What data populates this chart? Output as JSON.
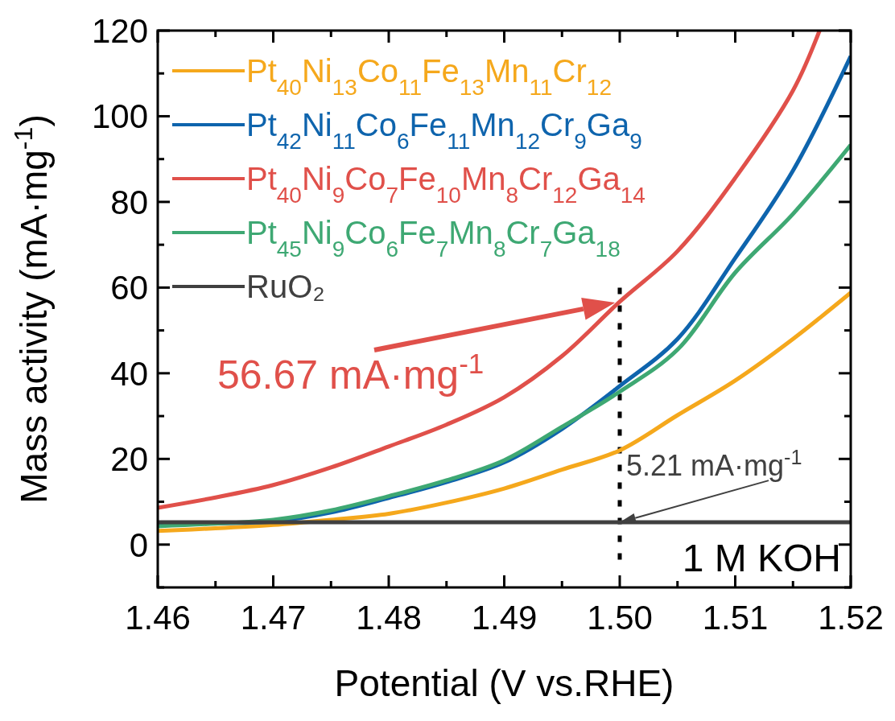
{
  "chart_data": {
    "type": "line",
    "xlabel": "Potential (V vs.RHE)",
    "ylabel": "Mass activity (mA·mg$^{-1}$)",
    "xlim": [
      1.46,
      1.52
    ],
    "xticks": [
      1.46,
      {
        "value": 1.465,
        "label": null
      },
      1.47,
      {
        "value": 1.475,
        "label": null
      },
      1.48,
      {
        "value": 1.485,
        "label": null
      },
      1.49,
      {
        "value": 1.495,
        "label": null
      },
      "1.50",
      {
        "value": 1.505,
        "label": null
      },
      1.51,
      {
        "value": 1.515,
        "label": null
      },
      1.52
    ],
    "ylim": [
      -10,
      120
    ],
    "yticks": [
      {
        "value": -10,
        "label": null
      },
      0,
      {
        "value": 10,
        "label": null
      },
      20,
      {
        "value": 30,
        "label": null
      },
      40,
      {
        "value": 50,
        "label": null
      },
      60,
      {
        "value": 70,
        "label": null
      },
      80,
      {
        "value": 90,
        "label": null
      },
      100,
      {
        "value": 110,
        "label": null
      },
      120
    ],
    "legend": "top left",
    "grid": false,
    "line_style": "solid",
    "series": [
      {
        "name": "Pt$_{40}$Ni$_{13}$Co$_{11}$Fe$_{13}$Mn$_{11}$Cr$_{12}$",
        "color": "#f5a81c",
        "x": [
          1.46,
          1.465,
          1.47,
          1.475,
          1.48,
          1.485,
          1.49,
          1.495,
          1.5,
          1.505,
          1.51,
          1.515,
          1.52
        ],
        "values": [
          3.2,
          3.8,
          4.6,
          5.8,
          7.2,
          9.8,
          13.1,
          17.5,
          22,
          30.2,
          38.3,
          48,
          58.8
        ]
      },
      {
        "name": "Pt$_{42}$Ni$_{11}$Co$_{6}$Fe$_{11}$Mn$_{12}$Cr$_{9}$Ga$_{9}$",
        "color": "#0e64ad",
        "x": [
          1.46,
          1.465,
          1.47,
          1.475,
          1.48,
          1.485,
          1.49,
          1.495,
          1.5,
          1.505,
          1.51,
          1.515,
          1.52
        ],
        "values": [
          4.9,
          5,
          5.4,
          7.5,
          10.9,
          14.6,
          19.2,
          27,
          37,
          48,
          66.9,
          87.3,
          114
        ]
      },
      {
        "name": "Pt$_{40}$Ni$_{9}$Co$_{7}$Fe$_{10}$Mn$_{8}$Cr$_{12}$Ga$_{14}$",
        "color": "#e0504a",
        "x": [
          1.46,
          1.465,
          1.47,
          1.475,
          1.48,
          1.485,
          1.49,
          1.495,
          1.5,
          1.505,
          1.51,
          1.515,
          1.5173
        ],
        "values": [
          8.6,
          11,
          13.9,
          18,
          22.9,
          28,
          34.4,
          44,
          56.7,
          68.5,
          85.6,
          106,
          120
        ]
      },
      {
        "name": "Pt$_{45}$Ni$_{9}$Co$_{6}$Fe$_{7}$Mn$_{8}$Cr$_{7}$Ga$_{18}$",
        "color": "#3ea873",
        "x": [
          1.46,
          1.465,
          1.47,
          1.475,
          1.48,
          1.485,
          1.49,
          1.495,
          1.5,
          1.505,
          1.51,
          1.515,
          1.52
        ],
        "values": [
          4.3,
          4.9,
          5.8,
          8,
          11.3,
          15,
          19.7,
          27.5,
          35.7,
          45.5,
          63.5,
          77.2,
          93.3
        ]
      },
      {
        "name": "RuO₂",
        "color": "#404040",
        "x": [
          1.46,
          1.52
        ],
        "values": [
          5.2,
          5.2
        ]
      }
    ],
    "ref_lines": [
      {
        "axis": "x",
        "value": 1.5,
        "color": "#000000",
        "line_style": "dotted"
      }
    ],
    "annotations": [
      "56.67 mA·mg$^{-1}$",
      "5.21 mA·mg$^{-1}$",
      "1 M KOH"
    ]
  }
}
